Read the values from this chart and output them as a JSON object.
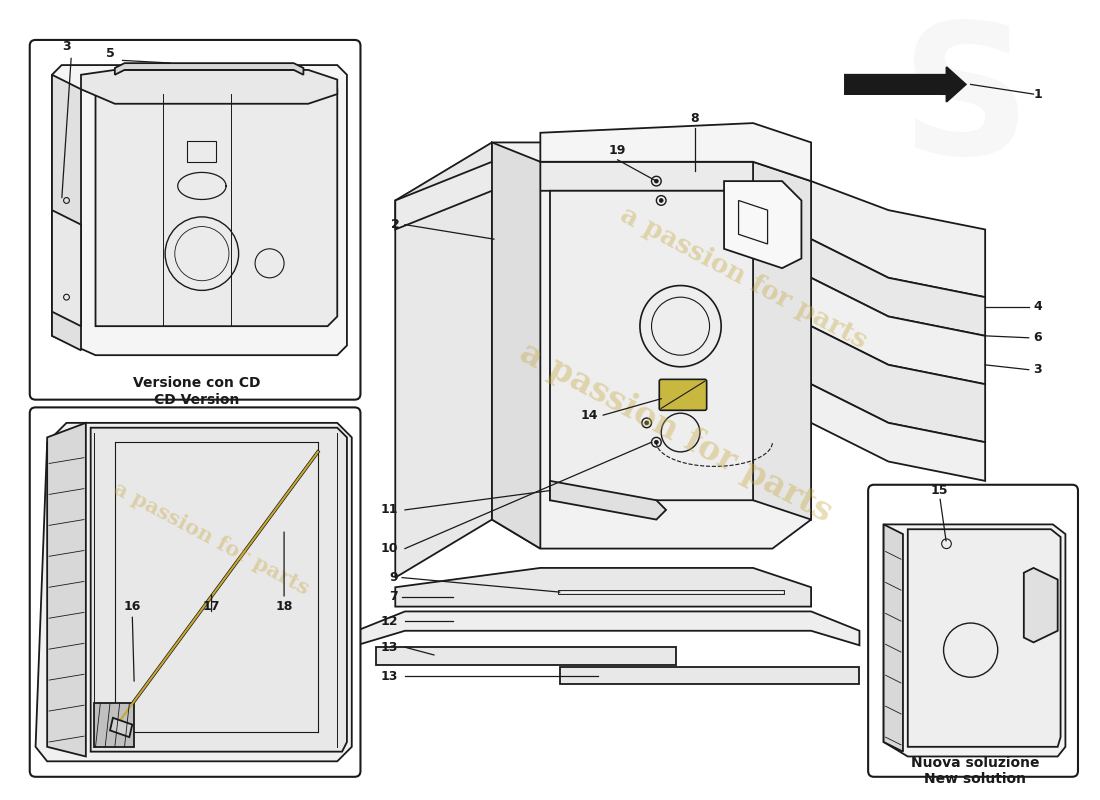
{
  "bg_color": "#ffffff",
  "line_color": "#1a1a1a",
  "watermark_text": "a passion for parts",
  "watermark_color": "#c8a840",
  "box1_label": "Versione con CD\nCD Version",
  "box2_label": "Nuova soluzione\nNew solution",
  "fig_width": 11.0,
  "fig_height": 8.0,
  "dpi": 100
}
